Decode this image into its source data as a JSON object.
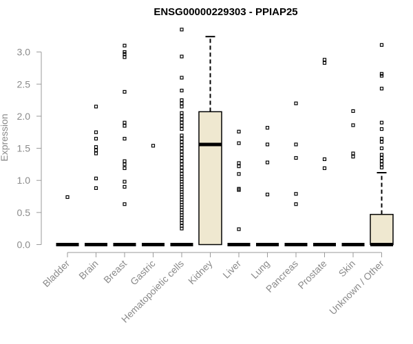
{
  "chart_data": {
    "type": "boxplot",
    "title": "ENSG00000229303 - PPIAP25",
    "xlabel": "",
    "ylabel": "Expression",
    "ylim": [
      0,
      3.35
    ],
    "yticks": [
      "0.0",
      "0.5",
      "1.0",
      "1.5",
      "2.0",
      "2.5",
      "3.0"
    ],
    "grid": false,
    "box_fill": "#efe8d0",
    "categories": [
      {
        "name": "Bladder",
        "stats": [
          0,
          0,
          0,
          0,
          0
        ],
        "outliers": [
          0.74
        ]
      },
      {
        "name": "Brain",
        "stats": [
          0,
          0,
          0,
          0,
          0
        ],
        "outliers": [
          0.88,
          1.03,
          1.42,
          1.47,
          1.52,
          1.65,
          1.75,
          2.15
        ]
      },
      {
        "name": "Breast",
        "stats": [
          0,
          0,
          0,
          0,
          0
        ],
        "outliers": [
          0.63,
          0.9,
          0.98,
          1.19,
          1.25,
          1.3,
          1.65,
          1.85,
          1.9,
          2.38,
          2.92,
          2.97,
          3.0,
          3.1
        ]
      },
      {
        "name": "Gastric",
        "stats": [
          0,
          0,
          0,
          0,
          0
        ],
        "outliers": [
          1.54
        ]
      },
      {
        "name": "Hematopoietic cells",
        "stats": [
          0,
          0,
          0,
          0,
          0
        ],
        "outliers": [
          0.25,
          0.29,
          0.34,
          0.38,
          0.42,
          0.46,
          0.5,
          0.54,
          0.58,
          0.62,
          0.66,
          0.7,
          0.74,
          0.78,
          0.82,
          0.86,
          0.9,
          0.94,
          0.98,
          1.02,
          1.06,
          1.1,
          1.15,
          1.2,
          1.25,
          1.3,
          1.35,
          1.4,
          1.45,
          1.5,
          1.55,
          1.6,
          1.65,
          1.7,
          1.8,
          1.85,
          1.9,
          1.95,
          2.0,
          2.05,
          2.15,
          2.2,
          2.25,
          2.4,
          2.6,
          2.93,
          3.35
        ]
      },
      {
        "name": "Kidney",
        "stats": [
          0,
          0,
          1.56,
          2.07,
          3.24
        ],
        "outliers": []
      },
      {
        "name": "Liver",
        "stats": [
          0,
          0,
          0,
          0,
          0
        ],
        "outliers": [
          0.24,
          0.85,
          0.87,
          1.1,
          1.22,
          1.27,
          1.58,
          1.76
        ]
      },
      {
        "name": "Lung",
        "stats": [
          0,
          0,
          0,
          0,
          0
        ],
        "outliers": [
          0.78,
          1.28,
          1.56,
          1.82
        ]
      },
      {
        "name": "Pancreas",
        "stats": [
          0,
          0,
          0,
          0,
          0
        ],
        "outliers": [
          0.63,
          0.79,
          1.35,
          1.56,
          2.2
        ]
      },
      {
        "name": "Prostate",
        "stats": [
          0,
          0,
          0,
          0,
          0
        ],
        "outliers": [
          1.19,
          1.33,
          2.83,
          2.88
        ]
      },
      {
        "name": "Skin",
        "stats": [
          0,
          0,
          0,
          0,
          0
        ],
        "outliers": [
          1.37,
          1.42,
          1.86,
          2.08
        ]
      },
      {
        "name": "Unknown / Other",
        "stats": [
          0,
          0,
          0,
          0.47,
          1.12
        ],
        "outliers": [
          1.2,
          1.25,
          1.3,
          1.35,
          1.4,
          1.5,
          1.6,
          1.65,
          1.8,
          1.9,
          2.43,
          2.63,
          2.66,
          3.11
        ]
      }
    ]
  }
}
